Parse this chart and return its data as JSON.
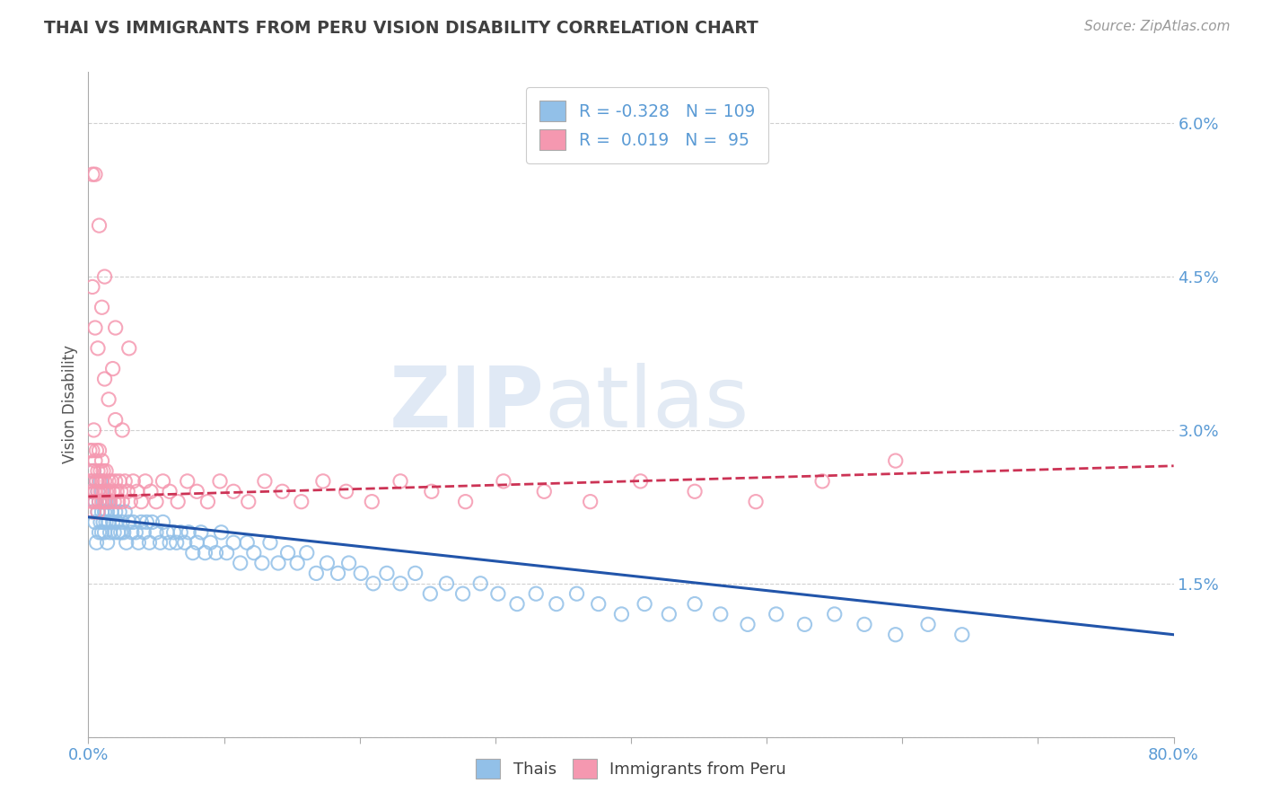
{
  "title": "THAI VS IMMIGRANTS FROM PERU VISION DISABILITY CORRELATION CHART",
  "source": "Source: ZipAtlas.com",
  "ylabel": "Vision Disability",
  "xmin": 0.0,
  "xmax": 0.8,
  "ymin": 0.0,
  "ymax": 0.065,
  "yticks": [
    0.0,
    0.015,
    0.03,
    0.045,
    0.06
  ],
  "ytick_labels": [
    "",
    "1.5%",
    "3.0%",
    "4.5%",
    "6.0%"
  ],
  "blue_R": -0.328,
  "blue_N": 109,
  "pink_R": 0.019,
  "pink_N": 95,
  "blue_color": "#92c0e8",
  "pink_color": "#f598b0",
  "blue_line_color": "#2255aa",
  "pink_line_color": "#cc3355",
  "watermark_zip": "ZIP",
  "watermark_atlas": "atlas",
  "legend_label_blue": "Thais",
  "legend_label_pink": "Immigrants from Peru",
  "background_color": "#ffffff",
  "grid_color": "#d0d0d0",
  "title_color": "#404040",
  "axis_label_color": "#5b9bd5",
  "blue_scatter_x": [
    0.002,
    0.003,
    0.004,
    0.005,
    0.005,
    0.006,
    0.006,
    0.007,
    0.007,
    0.008,
    0.008,
    0.009,
    0.009,
    0.01,
    0.01,
    0.01,
    0.011,
    0.011,
    0.012,
    0.012,
    0.013,
    0.013,
    0.014,
    0.014,
    0.015,
    0.015,
    0.016,
    0.017,
    0.018,
    0.019,
    0.02,
    0.021,
    0.022,
    0.023,
    0.024,
    0.025,
    0.026,
    0.027,
    0.028,
    0.03,
    0.032,
    0.033,
    0.035,
    0.037,
    0.039,
    0.041,
    0.043,
    0.045,
    0.047,
    0.05,
    0.053,
    0.055,
    0.058,
    0.06,
    0.063,
    0.065,
    0.068,
    0.071,
    0.074,
    0.077,
    0.08,
    0.083,
    0.086,
    0.09,
    0.094,
    0.098,
    0.102,
    0.107,
    0.112,
    0.117,
    0.122,
    0.128,
    0.134,
    0.14,
    0.147,
    0.154,
    0.161,
    0.168,
    0.176,
    0.184,
    0.192,
    0.201,
    0.21,
    0.22,
    0.23,
    0.241,
    0.252,
    0.264,
    0.276,
    0.289,
    0.302,
    0.316,
    0.33,
    0.345,
    0.36,
    0.376,
    0.393,
    0.41,
    0.428,
    0.447,
    0.466,
    0.486,
    0.507,
    0.528,
    0.55,
    0.572,
    0.595,
    0.619,
    0.644
  ],
  "blue_scatter_y": [
    0.024,
    0.022,
    0.026,
    0.021,
    0.023,
    0.025,
    0.019,
    0.022,
    0.024,
    0.02,
    0.023,
    0.021,
    0.025,
    0.022,
    0.02,
    0.024,
    0.021,
    0.023,
    0.02,
    0.022,
    0.021,
    0.023,
    0.019,
    0.022,
    0.021,
    0.023,
    0.02,
    0.022,
    0.021,
    0.02,
    0.022,
    0.021,
    0.02,
    0.022,
    0.02,
    0.021,
    0.02,
    0.022,
    0.019,
    0.021,
    0.02,
    0.021,
    0.02,
    0.019,
    0.021,
    0.02,
    0.021,
    0.019,
    0.021,
    0.02,
    0.019,
    0.021,
    0.02,
    0.019,
    0.02,
    0.019,
    0.02,
    0.019,
    0.02,
    0.018,
    0.019,
    0.02,
    0.018,
    0.019,
    0.018,
    0.02,
    0.018,
    0.019,
    0.017,
    0.019,
    0.018,
    0.017,
    0.019,
    0.017,
    0.018,
    0.017,
    0.018,
    0.016,
    0.017,
    0.016,
    0.017,
    0.016,
    0.015,
    0.016,
    0.015,
    0.016,
    0.014,
    0.015,
    0.014,
    0.015,
    0.014,
    0.013,
    0.014,
    0.013,
    0.014,
    0.013,
    0.012,
    0.013,
    0.012,
    0.013,
    0.012,
    0.011,
    0.012,
    0.011,
    0.012,
    0.011,
    0.01,
    0.011,
    0.01
  ],
  "pink_scatter_x": [
    0.001,
    0.001,
    0.002,
    0.002,
    0.003,
    0.003,
    0.003,
    0.004,
    0.004,
    0.004,
    0.005,
    0.005,
    0.005,
    0.006,
    0.006,
    0.007,
    0.007,
    0.007,
    0.008,
    0.008,
    0.008,
    0.009,
    0.009,
    0.01,
    0.01,
    0.01,
    0.011,
    0.011,
    0.012,
    0.012,
    0.013,
    0.013,
    0.014,
    0.015,
    0.015,
    0.016,
    0.017,
    0.018,
    0.019,
    0.02,
    0.021,
    0.022,
    0.023,
    0.024,
    0.025,
    0.027,
    0.029,
    0.031,
    0.033,
    0.036,
    0.039,
    0.042,
    0.046,
    0.05,
    0.055,
    0.06,
    0.066,
    0.073,
    0.08,
    0.088,
    0.097,
    0.107,
    0.118,
    0.13,
    0.143,
    0.157,
    0.173,
    0.19,
    0.209,
    0.23,
    0.253,
    0.278,
    0.306,
    0.336,
    0.37,
    0.407,
    0.447,
    0.492,
    0.541,
    0.595,
    0.003,
    0.003,
    0.005,
    0.007,
    0.01,
    0.012,
    0.015,
    0.018,
    0.02,
    0.025,
    0.008,
    0.012,
    0.02,
    0.03,
    0.005
  ],
  "pink_scatter_y": [
    0.025,
    0.028,
    0.024,
    0.026,
    0.023,
    0.028,
    0.025,
    0.022,
    0.026,
    0.03,
    0.024,
    0.027,
    0.023,
    0.025,
    0.028,
    0.024,
    0.026,
    0.022,
    0.025,
    0.028,
    0.023,
    0.026,
    0.024,
    0.025,
    0.023,
    0.027,
    0.024,
    0.026,
    0.023,
    0.025,
    0.024,
    0.026,
    0.023,
    0.025,
    0.024,
    0.023,
    0.025,
    0.024,
    0.023,
    0.025,
    0.024,
    0.023,
    0.025,
    0.024,
    0.023,
    0.025,
    0.024,
    0.023,
    0.025,
    0.024,
    0.023,
    0.025,
    0.024,
    0.023,
    0.025,
    0.024,
    0.023,
    0.025,
    0.024,
    0.023,
    0.025,
    0.024,
    0.023,
    0.025,
    0.024,
    0.023,
    0.025,
    0.024,
    0.023,
    0.025,
    0.024,
    0.023,
    0.025,
    0.024,
    0.023,
    0.025,
    0.024,
    0.023,
    0.025,
    0.027,
    0.055,
    0.044,
    0.04,
    0.038,
    0.042,
    0.035,
    0.033,
    0.036,
    0.031,
    0.03,
    0.05,
    0.045,
    0.04,
    0.038,
    0.055
  ]
}
